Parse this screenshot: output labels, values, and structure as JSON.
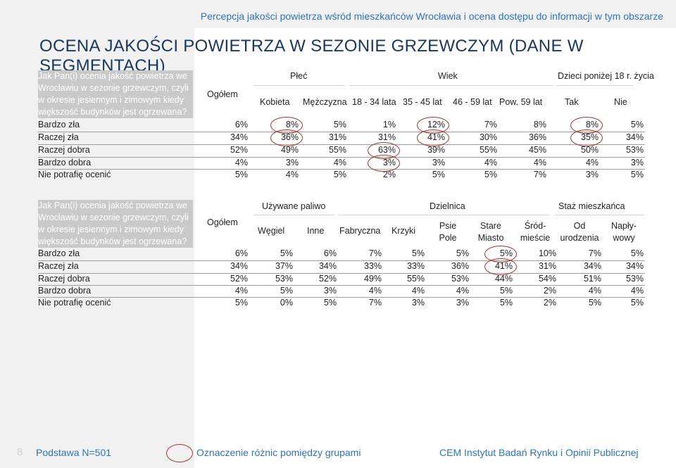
{
  "header": {
    "title": "Percepcja jakości powietrza wśród mieszkańców Wrocławia i ocena dostępu do informacji w tym obszarze"
  },
  "page_title": "OCENA JAKOŚCI POWIETRZA W SEZONIE GRZEWCZYM (DANE W SEGMENTACH)",
  "table1": {
    "question": "Jak Pan(i) ocenia jakość powietrza we Wrocławiu w sezonie grzewczym, czyli w okresie jesiennym i zimowym kiedy większość budynków jest ogrzewana?",
    "col_total": "Ogółem",
    "groups": [
      "Płeć",
      "Wiek",
      "Dzieci poniżej 18 r. życia"
    ],
    "columns": [
      "Kobieta",
      "Mężczyzna",
      "18 - 34 lata",
      "35 - 45 lat",
      "46 - 59 lat",
      "Pow. 59 lat",
      "Tak",
      "Nie"
    ],
    "rows": [
      {
        "label": "Bardzo zła",
        "values": [
          "6%",
          "8%",
          "5%",
          "1%",
          "12%",
          "7%",
          "8%",
          "8%",
          "5%"
        ]
      },
      {
        "label": "Raczej zła",
        "values": [
          "34%",
          "36%",
          "31%",
          "31%",
          "41%",
          "30%",
          "36%",
          "35%",
          "34%"
        ]
      },
      {
        "label": "Raczej dobra",
        "values": [
          "52%",
          "49%",
          "55%",
          "63%",
          "39%",
          "55%",
          "45%",
          "50%",
          "53%"
        ]
      },
      {
        "label": "Bardzo dobra",
        "values": [
          "4%",
          "3%",
          "4%",
          "3%",
          "3%",
          "4%",
          "4%",
          "4%",
          "3%"
        ]
      },
      {
        "label": "Nie potrafię ocenić",
        "values": [
          "5%",
          "4%",
          "5%",
          "2%",
          "5%",
          "5%",
          "7%",
          "3%",
          "5%"
        ]
      }
    ]
  },
  "table2": {
    "question": "Jak Pan(i) ocenia jakość powietrza we Wrocławiu w sezonie grzewczym, czyli w okresie jesiennym i zimowym kiedy większość budynków jest ogrzewana?",
    "col_total": "Ogółem",
    "groups": [
      "Używane paliwo",
      "Dzielnica",
      "Staż mieszkańca"
    ],
    "columns": [
      "Węgiel",
      "Inne",
      "Fabryczna",
      "Krzyki",
      "Psie Pole",
      "Stare Miasto",
      "Śród-mieście",
      "Od urodzenia",
      "Napły-wowy"
    ],
    "rows": [
      {
        "label": "Bardzo zła",
        "values": [
          "6%",
          "5%",
          "6%",
          "7%",
          "5%",
          "5%",
          "5%",
          "10%",
          "7%",
          "5%"
        ]
      },
      {
        "label": "Raczej zła",
        "values": [
          "34%",
          "37%",
          "34%",
          "33%",
          "33%",
          "36%",
          "41%",
          "31%",
          "34%",
          "34%"
        ]
      },
      {
        "label": "Raczej dobra",
        "values": [
          "52%",
          "53%",
          "52%",
          "49%",
          "55%",
          "53%",
          "44%",
          "54%",
          "51%",
          "53%"
        ]
      },
      {
        "label": "Bardzo dobra",
        "values": [
          "4%",
          "5%",
          "3%",
          "4%",
          "4%",
          "4%",
          "5%",
          "2%",
          "4%",
          "4%"
        ]
      },
      {
        "label": "Nie potrafię ocenić",
        "values": [
          "5%",
          "0%",
          "5%",
          "7%",
          "3%",
          "3%",
          "5%",
          "2%",
          "5%",
          "5%"
        ]
      }
    ]
  },
  "footer": {
    "page_number": "8",
    "base": "Podstawa  N=501",
    "legend_text": "Oznaczenie różnic pomiędzy grupami",
    "company": "CEM Instytut Badań Rynku i Opinii Publicznej"
  },
  "colors": {
    "accent": "#2e74b5",
    "title": "#17375e",
    "highlight_circle": "#a0342c",
    "sidebar": "#f1f1f1"
  }
}
